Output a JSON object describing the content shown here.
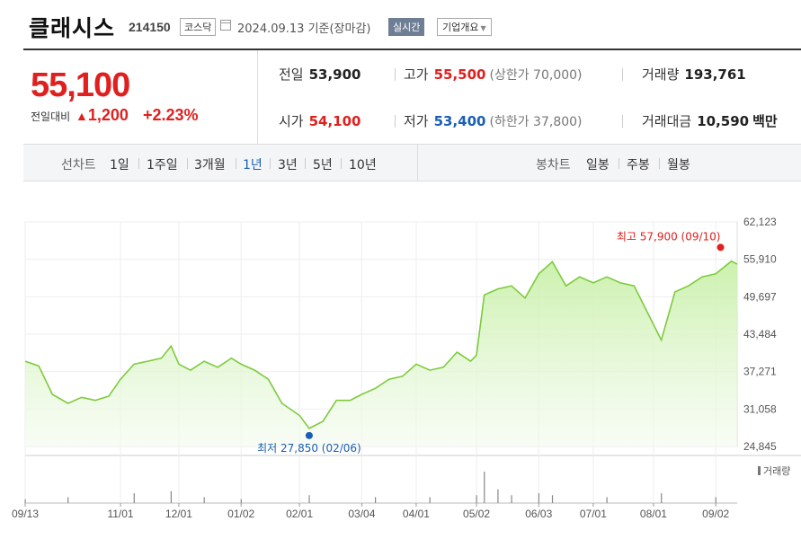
{
  "header": {
    "company_name": "클래시스",
    "stock_code": "214150",
    "market": "코스닥",
    "date_basis": "2024.09.13 기준(장마감)",
    "realtime_label": "실시간",
    "overview_label": "기업개요"
  },
  "quote": {
    "price": "55,100",
    "change_label": "전일대비",
    "change_arrow": "▲",
    "change_value": "1,200",
    "change_percent": "+2.23%"
  },
  "stats": {
    "prev_close": {
      "label": "전일",
      "value": "53,900"
    },
    "open": {
      "label": "시가",
      "value": "54,100"
    },
    "high": {
      "label": "고가",
      "value": "55,500",
      "sub_label": "(상한가 70,000)"
    },
    "low": {
      "label": "저가",
      "value": "53,400",
      "sub_label": "(하한가 37,800)"
    },
    "volume": {
      "label": "거래량",
      "value": "193,761"
    },
    "turnover": {
      "label": "거래대금",
      "value": "10,590",
      "unit": "백만"
    }
  },
  "tabs": {
    "line_chart_label": "선차트",
    "periods": [
      "1일",
      "1주일",
      "3개월",
      "1년",
      "3년",
      "5년",
      "10년"
    ],
    "active_period": "1년",
    "candle_chart_label": "봉차트",
    "candles": [
      "일봉",
      "주봉",
      "월봉"
    ]
  },
  "colors": {
    "up": "#e0201f",
    "down": "#1a5fb4",
    "line": "#7ccb3c",
    "fill": "#c9f0a9",
    "active_tab": "#1a5fb4"
  },
  "chart_data": {
    "type": "area",
    "y_ticks": [
      "62,123",
      "55,910",
      "49,697",
      "43,484",
      "37,271",
      "31,058",
      "24,845"
    ],
    "ylim": [
      24845,
      62123
    ],
    "x_tick_labels": [
      "09/13",
      "11/01",
      "12/01",
      "01/02",
      "02/01",
      "03/04",
      "04/01",
      "05/02",
      "06/03",
      "07/01",
      "08/01",
      "09/02"
    ],
    "annotation_high": "최고 57,900 (09/10)",
    "annotation_low": "최저 27,850 (02/06)",
    "high_value": 57900,
    "low_value": 27850,
    "volume_label": "거래량",
    "series": [
      {
        "x": "2023-09-13",
        "y": 39000
      },
      {
        "x": "2023-09-20",
        "y": 38200
      },
      {
        "x": "2023-09-27",
        "y": 33500
      },
      {
        "x": "2023-10-05",
        "y": 32000
      },
      {
        "x": "2023-10-12",
        "y": 33000
      },
      {
        "x": "2023-10-19",
        "y": 32500
      },
      {
        "x": "2023-10-26",
        "y": 33200
      },
      {
        "x": "2023-11-01",
        "y": 36000
      },
      {
        "x": "2023-11-08",
        "y": 38500
      },
      {
        "x": "2023-11-15",
        "y": 39000
      },
      {
        "x": "2023-11-22",
        "y": 39500
      },
      {
        "x": "2023-11-27",
        "y": 41500
      },
      {
        "x": "2023-12-01",
        "y": 38500
      },
      {
        "x": "2023-12-07",
        "y": 37500
      },
      {
        "x": "2023-12-14",
        "y": 39000
      },
      {
        "x": "2023-12-21",
        "y": 38000
      },
      {
        "x": "2023-12-28",
        "y": 39500
      },
      {
        "x": "2024-01-02",
        "y": 38500
      },
      {
        "x": "2024-01-09",
        "y": 37500
      },
      {
        "x": "2024-01-16",
        "y": 36000
      },
      {
        "x": "2024-01-23",
        "y": 32000
      },
      {
        "x": "2024-02-01",
        "y": 30000
      },
      {
        "x": "2024-02-06",
        "y": 27850
      },
      {
        "x": "2024-02-13",
        "y": 29000
      },
      {
        "x": "2024-02-20",
        "y": 32500
      },
      {
        "x": "2024-02-27",
        "y": 32500
      },
      {
        "x": "2024-03-04",
        "y": 33500
      },
      {
        "x": "2024-03-11",
        "y": 34500
      },
      {
        "x": "2024-03-18",
        "y": 36000
      },
      {
        "x": "2024-03-25",
        "y": 36500
      },
      {
        "x": "2024-04-01",
        "y": 38500
      },
      {
        "x": "2024-04-08",
        "y": 37500
      },
      {
        "x": "2024-04-15",
        "y": 38000
      },
      {
        "x": "2024-04-22",
        "y": 40500
      },
      {
        "x": "2024-04-29",
        "y": 39000
      },
      {
        "x": "2024-05-02",
        "y": 40000
      },
      {
        "x": "2024-05-06",
        "y": 50000
      },
      {
        "x": "2024-05-13",
        "y": 51000
      },
      {
        "x": "2024-05-20",
        "y": 51500
      },
      {
        "x": "2024-05-27",
        "y": 49500
      },
      {
        "x": "2024-06-03",
        "y": 53500
      },
      {
        "x": "2024-06-10",
        "y": 55500
      },
      {
        "x": "2024-06-17",
        "y": 51500
      },
      {
        "x": "2024-06-24",
        "y": 53000
      },
      {
        "x": "2024-07-01",
        "y": 52000
      },
      {
        "x": "2024-07-08",
        "y": 53000
      },
      {
        "x": "2024-07-15",
        "y": 52000
      },
      {
        "x": "2024-07-22",
        "y": 51500
      },
      {
        "x": "2024-07-29",
        "y": 47000
      },
      {
        "x": "2024-08-05",
        "y": 42500
      },
      {
        "x": "2024-08-12",
        "y": 50500
      },
      {
        "x": "2024-08-19",
        "y": 51500
      },
      {
        "x": "2024-08-26",
        "y": 53000
      },
      {
        "x": "2024-09-02",
        "y": 53500
      },
      {
        "x": "2024-09-10",
        "y": 55600
      },
      {
        "x": "2024-09-13",
        "y": 55100
      }
    ],
    "volume": [
      {
        "x": "2023-09-13",
        "v": 2
      },
      {
        "x": "2023-10-05",
        "v": 3
      },
      {
        "x": "2023-11-08",
        "v": 5
      },
      {
        "x": "2023-11-27",
        "v": 6
      },
      {
        "x": "2023-12-14",
        "v": 3
      },
      {
        "x": "2024-01-02",
        "v": 2
      },
      {
        "x": "2024-02-06",
        "v": 4
      },
      {
        "x": "2024-03-11",
        "v": 3
      },
      {
        "x": "2024-04-08",
        "v": 3
      },
      {
        "x": "2024-05-02",
        "v": 4
      },
      {
        "x": "2024-05-06",
        "v": 16
      },
      {
        "x": "2024-05-13",
        "v": 7
      },
      {
        "x": "2024-05-20",
        "v": 4
      },
      {
        "x": "2024-06-03",
        "v": 5
      },
      {
        "x": "2024-06-10",
        "v": 4
      },
      {
        "x": "2024-07-08",
        "v": 3
      },
      {
        "x": "2024-08-05",
        "v": 5
      },
      {
        "x": "2024-09-02",
        "v": 3
      }
    ]
  }
}
